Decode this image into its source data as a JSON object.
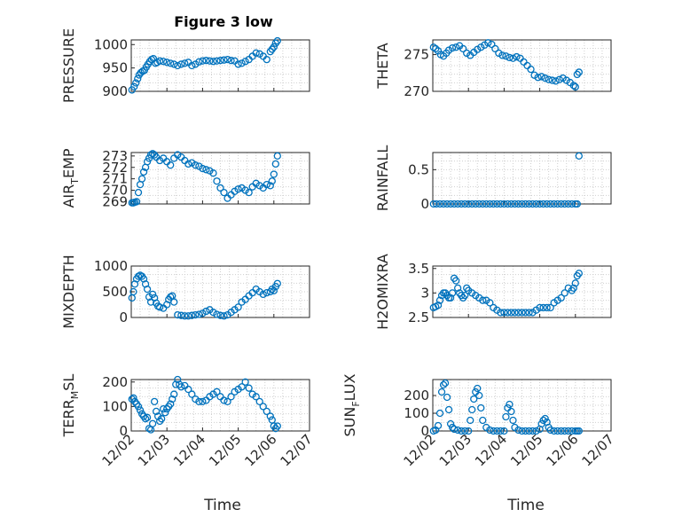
{
  "figure": {
    "title": "Figure 3 low",
    "marker_color": "#0072BD",
    "axis_color": "#262626",
    "grid_color": "#cfcfcf"
  },
  "chart_data": [
    {
      "type": "scatter",
      "title": "Figure 3 low",
      "ylabel": "PRESSURE",
      "xlabel": "",
      "ylim": [
        900,
        1010
      ],
      "yticks": [
        900,
        950,
        1000
      ],
      "ytick_labels": [
        "900",
        "950",
        "1000"
      ],
      "xlim": [
        0,
        5
      ],
      "grid": true,
      "x": [
        0.02,
        0.08,
        0.13,
        0.18,
        0.22,
        0.27,
        0.32,
        0.37,
        0.42,
        0.47,
        0.52,
        0.57,
        0.62,
        0.68,
        0.73,
        0.8,
        0.9,
        1.0,
        1.1,
        1.2,
        1.3,
        1.4,
        1.5,
        1.6,
        1.7,
        1.8,
        1.9,
        2.0,
        2.1,
        2.2,
        2.3,
        2.4,
        2.5,
        2.6,
        2.7,
        2.8,
        2.9,
        3.0,
        3.1,
        3.2,
        3.3,
        3.4,
        3.5,
        3.6,
        3.7,
        3.8,
        3.9,
        3.95,
        4.0,
        4.05,
        4.1
      ],
      "y": [
        903,
        910,
        918,
        927,
        935,
        940,
        943,
        945,
        952,
        958,
        964,
        968,
        970,
        960,
        962,
        965,
        964,
        962,
        960,
        958,
        955,
        958,
        960,
        962,
        955,
        958,
        963,
        965,
        966,
        965,
        964,
        965,
        966,
        967,
        968,
        966,
        965,
        958,
        960,
        964,
        968,
        975,
        982,
        980,
        975,
        968,
        985,
        990,
        995,
        1003,
        1008
      ]
    },
    {
      "type": "scatter",
      "ylabel": "THETA",
      "xlabel": "",
      "ylim": [
        270,
        277
      ],
      "yticks": [
        270,
        275
      ],
      "ytick_labels": [
        "270",
        "275"
      ],
      "xlim": [
        0,
        5
      ],
      "grid": true,
      "x": [
        0.02,
        0.08,
        0.15,
        0.22,
        0.3,
        0.38,
        0.45,
        0.55,
        0.65,
        0.75,
        0.85,
        0.95,
        1.05,
        1.15,
        1.25,
        1.35,
        1.45,
        1.55,
        1.65,
        1.75,
        1.85,
        1.95,
        2.05,
        2.15,
        2.25,
        2.35,
        2.45,
        2.55,
        2.65,
        2.75,
        2.85,
        2.95,
        3.05,
        3.15,
        3.25,
        3.35,
        3.45,
        3.55,
        3.65,
        3.75,
        3.85,
        3.95,
        4.0,
        4.05,
        4.1
      ],
      "y": [
        276.0,
        275.8,
        275.5,
        275.0,
        274.8,
        275.2,
        275.6,
        275.9,
        276.0,
        276.2,
        275.8,
        275.2,
        274.9,
        275.3,
        275.7,
        276.0,
        276.3,
        276.6,
        276.4,
        275.8,
        275.2,
        274.9,
        274.8,
        274.6,
        274.5,
        274.7,
        274.5,
        274.0,
        273.5,
        273.0,
        272.2,
        271.9,
        272.0,
        271.8,
        271.6,
        271.5,
        271.4,
        271.6,
        271.8,
        271.5,
        271.2,
        270.8,
        270.6,
        272.3,
        272.6
      ]
    },
    {
      "type": "scatter",
      "ylabel": "AIR_TEMP",
      "xlabel": "",
      "ylim": [
        268.8,
        273.3
      ],
      "yticks": [
        269,
        270,
        271,
        272,
        273
      ],
      "ytick_labels": [
        "269",
        "270",
        "271",
        "272",
        "273"
      ],
      "xlim": [
        0,
        5
      ],
      "grid": true,
      "x": [
        0.02,
        0.06,
        0.1,
        0.15,
        0.2,
        0.25,
        0.3,
        0.35,
        0.4,
        0.45,
        0.5,
        0.55,
        0.6,
        0.65,
        0.7,
        0.8,
        0.9,
        1.0,
        1.1,
        1.2,
        1.3,
        1.4,
        1.5,
        1.6,
        1.7,
        1.8,
        1.9,
        2.0,
        2.1,
        2.2,
        2.3,
        2.4,
        2.5,
        2.6,
        2.7,
        2.8,
        2.9,
        3.0,
        3.1,
        3.2,
        3.3,
        3.4,
        3.5,
        3.6,
        3.7,
        3.8,
        3.9,
        3.95,
        4.0,
        4.05,
        4.1
      ],
      "y": [
        268.9,
        268.9,
        268.95,
        269.0,
        269.8,
        270.5,
        271.0,
        271.6,
        272.0,
        272.5,
        272.8,
        273.1,
        273.2,
        273.1,
        272.9,
        272.6,
        272.8,
        272.5,
        272.2,
        272.8,
        273.1,
        272.9,
        272.6,
        272.3,
        272.4,
        272.2,
        272.1,
        271.9,
        271.8,
        271.7,
        271.5,
        270.8,
        270.2,
        269.8,
        269.3,
        269.6,
        269.9,
        270.1,
        270.2,
        270.0,
        269.8,
        270.3,
        270.6,
        270.4,
        270.2,
        270.5,
        270.4,
        270.8,
        271.4,
        272.3,
        273.0
      ]
    },
    {
      "type": "scatter",
      "ylabel": "RAINFALL",
      "xlabel": "",
      "ylim": [
        0,
        0.75
      ],
      "yticks": [
        0,
        0.5
      ],
      "ytick_labels": [
        "0",
        "0.5"
      ],
      "xlim": [
        0,
        5
      ],
      "grid": true,
      "x": [
        0.02,
        0.1,
        0.2,
        0.3,
        0.4,
        0.5,
        0.6,
        0.7,
        0.8,
        0.9,
        1.0,
        1.1,
        1.2,
        1.3,
        1.4,
        1.5,
        1.6,
        1.7,
        1.8,
        1.9,
        2.0,
        2.1,
        2.2,
        2.3,
        2.4,
        2.5,
        2.6,
        2.7,
        2.8,
        2.9,
        3.0,
        3.1,
        3.2,
        3.3,
        3.4,
        3.5,
        3.6,
        3.7,
        3.8,
        3.9,
        4.0,
        4.05,
        4.1
      ],
      "y": [
        0,
        0,
        0,
        0,
        0,
        0,
        0,
        0,
        0,
        0,
        0,
        0,
        0,
        0,
        0,
        0,
        0,
        0,
        0,
        0,
        0,
        0,
        0,
        0,
        0,
        0,
        0,
        0,
        0,
        0,
        0,
        0,
        0,
        0,
        0,
        0,
        0,
        0,
        0,
        0,
        0,
        0,
        0.7
      ]
    },
    {
      "type": "scatter",
      "ylabel": "MIXDEPTH",
      "xlabel": "",
      "ylim": [
        0,
        1000
      ],
      "yticks": [
        0,
        500,
        1000
      ],
      "ytick_labels": [
        "0",
        "500",
        "1000"
      ],
      "xlim": [
        0,
        5
      ],
      "grid": true,
      "x": [
        0.02,
        0.06,
        0.1,
        0.15,
        0.2,
        0.25,
        0.3,
        0.35,
        0.4,
        0.45,
        0.5,
        0.55,
        0.6,
        0.65,
        0.7,
        0.75,
        0.8,
        0.9,
        1.0,
        1.05,
        1.1,
        1.15,
        1.2,
        1.3,
        1.4,
        1.5,
        1.6,
        1.7,
        1.8,
        1.9,
        2.0,
        2.1,
        2.2,
        2.3,
        2.4,
        2.5,
        2.6,
        2.7,
        2.8,
        2.9,
        3.0,
        3.1,
        3.2,
        3.3,
        3.4,
        3.5,
        3.6,
        3.7,
        3.8,
        3.9,
        3.95,
        4.0,
        4.05,
        4.1
      ],
      "y": [
        380,
        500,
        650,
        750,
        800,
        820,
        800,
        750,
        650,
        550,
        400,
        300,
        450,
        380,
        280,
        220,
        200,
        180,
        250,
        350,
        400,
        420,
        300,
        50,
        40,
        30,
        30,
        40,
        50,
        60,
        80,
        120,
        150,
        100,
        60,
        40,
        30,
        50,
        100,
        150,
        200,
        300,
        350,
        420,
        480,
        550,
        500,
        450,
        480,
        500,
        550,
        520,
        600,
        660
      ]
    },
    {
      "type": "scatter",
      "ylabel": "H2OMIXRA",
      "xlabel": "",
      "ylim": [
        2.5,
        3.55
      ],
      "yticks": [
        2.5,
        3,
        3.5
      ],
      "ytick_labels": [
        "2.5",
        "3",
        "3.5"
      ],
      "xlim": [
        0,
        5
      ],
      "grid": true,
      "x": [
        0.02,
        0.08,
        0.15,
        0.2,
        0.25,
        0.3,
        0.35,
        0.4,
        0.45,
        0.5,
        0.55,
        0.6,
        0.65,
        0.7,
        0.75,
        0.8,
        0.85,
        0.9,
        0.95,
        1.0,
        1.1,
        1.2,
        1.3,
        1.4,
        1.5,
        1.6,
        1.7,
        1.8,
        1.9,
        2.0,
        2.1,
        2.2,
        2.3,
        2.4,
        2.5,
        2.6,
        2.7,
        2.8,
        2.9,
        3.0,
        3.1,
        3.2,
        3.3,
        3.4,
        3.5,
        3.6,
        3.7,
        3.8,
        3.9,
        3.95,
        4.0,
        4.05,
        4.1
      ],
      "y": [
        2.7,
        2.72,
        2.75,
        2.85,
        2.95,
        3.0,
        3.0,
        2.95,
        2.9,
        2.9,
        3.0,
        3.3,
        3.25,
        3.1,
        3.0,
        2.95,
        2.9,
        2.95,
        3.1,
        3.05,
        3.0,
        2.95,
        2.9,
        2.85,
        2.85,
        2.8,
        2.7,
        2.65,
        2.6,
        2.6,
        2.6,
        2.6,
        2.6,
        2.6,
        2.6,
        2.6,
        2.6,
        2.6,
        2.65,
        2.7,
        2.7,
        2.7,
        2.7,
        2.8,
        2.85,
        2.9,
        3.0,
        3.1,
        3.05,
        3.1,
        3.2,
        3.35,
        3.4
      ]
    },
    {
      "type": "scatter",
      "ylabel": "TERR_MSL",
      "xlabel": "Time",
      "ylim": [
        0,
        210
      ],
      "yticks": [
        0,
        100,
        200
      ],
      "ytick_labels": [
        "0",
        "100",
        "200"
      ],
      "xlim": [
        0,
        5
      ],
      "xticks": [
        0,
        1,
        2,
        3,
        4,
        5
      ],
      "xtick_labels": [
        "12/02",
        "12/03",
        "12/04",
        "12/05",
        "12/06",
        "12/07"
      ],
      "grid": true,
      "x": [
        0.02,
        0.06,
        0.1,
        0.15,
        0.2,
        0.25,
        0.3,
        0.35,
        0.4,
        0.45,
        0.5,
        0.55,
        0.6,
        0.65,
        0.7,
        0.75,
        0.8,
        0.85,
        0.9,
        0.95,
        1.0,
        1.05,
        1.1,
        1.15,
        1.2,
        1.25,
        1.3,
        1.35,
        1.4,
        1.5,
        1.6,
        1.7,
        1.8,
        1.9,
        2.0,
        2.1,
        2.2,
        2.3,
        2.4,
        2.5,
        2.6,
        2.7,
        2.8,
        2.9,
        3.0,
        3.1,
        3.2,
        3.3,
        3.4,
        3.5,
        3.6,
        3.7,
        3.8,
        3.9,
        3.95,
        4.0,
        4.05,
        4.1
      ],
      "y": [
        130,
        135,
        120,
        110,
        100,
        85,
        70,
        60,
        50,
        55,
        10,
        5,
        30,
        120,
        80,
        60,
        40,
        50,
        90,
        75,
        90,
        100,
        110,
        130,
        150,
        190,
        210,
        190,
        180,
        185,
        170,
        150,
        130,
        120,
        120,
        125,
        140,
        150,
        160,
        140,
        125,
        120,
        140,
        160,
        170,
        180,
        200,
        175,
        150,
        140,
        120,
        100,
        80,
        60,
        45,
        20,
        10,
        20
      ]
    },
    {
      "type": "scatter",
      "ylabel": "SUN_FLUX",
      "xlabel": "Time",
      "ylim": [
        0,
        290
      ],
      "yticks": [
        0,
        100,
        200
      ],
      "ytick_labels": [
        "0",
        "100",
        "200"
      ],
      "xlim": [
        0,
        5
      ],
      "xticks": [
        0,
        1,
        2,
        3,
        4,
        5
      ],
      "xtick_labels": [
        "12/02",
        "12/03",
        "12/04",
        "12/05",
        "12/06",
        "12/07"
      ],
      "grid": true,
      "x": [
        0.02,
        0.08,
        0.15,
        0.2,
        0.25,
        0.3,
        0.35,
        0.4,
        0.45,
        0.5,
        0.55,
        0.6,
        0.7,
        0.8,
        0.9,
        1.0,
        1.05,
        1.1,
        1.15,
        1.2,
        1.25,
        1.3,
        1.35,
        1.4,
        1.5,
        1.6,
        1.7,
        1.8,
        1.9,
        2.0,
        2.05,
        2.1,
        2.15,
        2.2,
        2.25,
        2.3,
        2.4,
        2.5,
        2.6,
        2.7,
        2.8,
        2.9,
        3.0,
        3.05,
        3.1,
        3.15,
        3.2,
        3.25,
        3.3,
        3.4,
        3.5,
        3.6,
        3.7,
        3.8,
        3.9,
        4.0,
        4.05,
        4.1
      ],
      "y": [
        0,
        5,
        30,
        100,
        220,
        260,
        270,
        190,
        120,
        40,
        20,
        10,
        5,
        0,
        0,
        0,
        60,
        120,
        180,
        220,
        240,
        200,
        130,
        60,
        20,
        5,
        0,
        0,
        0,
        0,
        80,
        130,
        150,
        110,
        60,
        20,
        5,
        0,
        0,
        0,
        0,
        0,
        10,
        40,
        60,
        70,
        50,
        20,
        5,
        0,
        0,
        0,
        0,
        0,
        0,
        0,
        0,
        0
      ]
    }
  ]
}
